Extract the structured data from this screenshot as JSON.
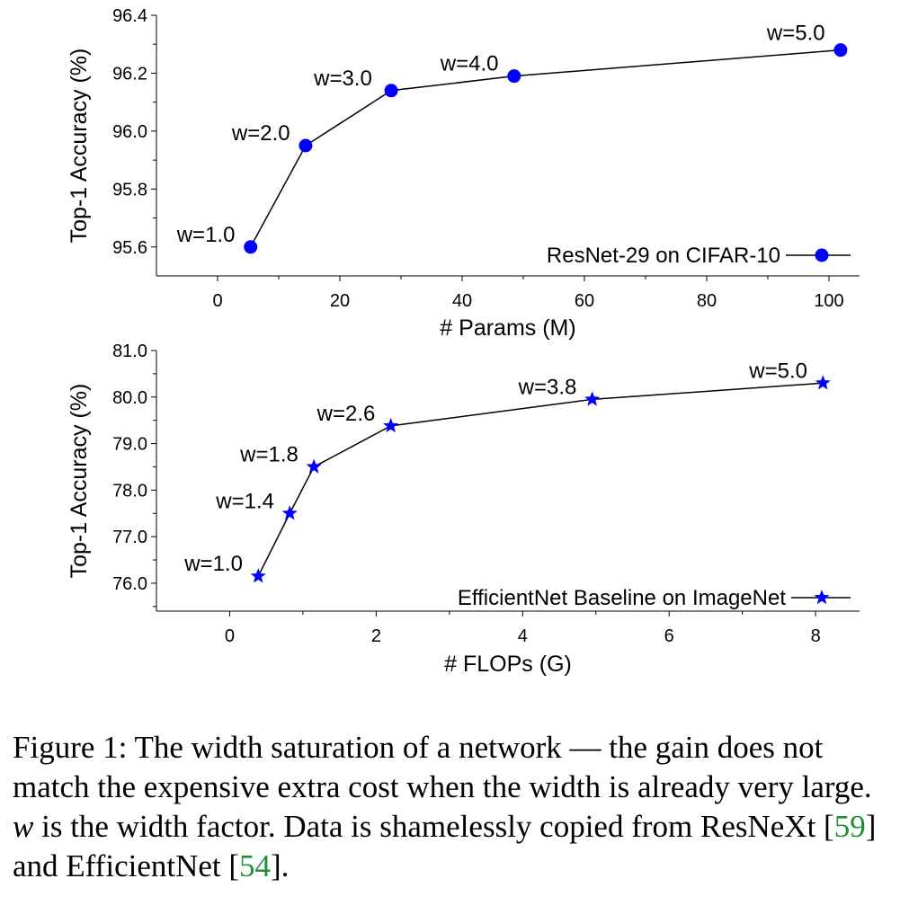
{
  "chart_data": [
    {
      "type": "line",
      "xlabel": "# Params (M)",
      "ylabel": "Top-1 Accuracy (%)",
      "xlim": [
        -10,
        105
      ],
      "ylim": [
        95.5,
        96.4
      ],
      "xticks": [
        0,
        20,
        40,
        60,
        80,
        100
      ],
      "yticks": [
        95.6,
        95.8,
        96.0,
        96.2,
        96.4
      ],
      "ytick_labels": [
        "95.6",
        "95.8",
        "96.0",
        "96.2",
        "96.4"
      ],
      "grid": false,
      "legend_position": "bottom-right",
      "marker": "circle",
      "color": "#0000ff",
      "series": [
        {
          "name": "ResNet-29 on CIFAR-10",
          "x": [
            5.4,
            14.4,
            28.4,
            48.5,
            101.9
          ],
          "y": [
            95.6,
            95.95,
            96.14,
            96.19,
            96.28
          ],
          "labels": [
            "w=1.0",
            "w=2.0",
            "w=3.0",
            "w=4.0",
            "w=5.0"
          ]
        }
      ]
    },
    {
      "type": "line",
      "xlabel": "# FLOPs (G)",
      "ylabel": "Top-1 Accuracy (%)",
      "xlim": [
        -1,
        8.6
      ],
      "ylim": [
        75.4,
        81.0
      ],
      "xticks": [
        0,
        2,
        4,
        6,
        8
      ],
      "yticks": [
        76.0,
        77.0,
        78.0,
        79.0,
        80.0,
        81.0
      ],
      "ytick_labels": [
        "76.0",
        "77.0",
        "78.0",
        "79.0",
        "80.0",
        "81.0"
      ],
      "grid": false,
      "legend_position": "bottom-right",
      "marker": "star",
      "color": "#0000ff",
      "series": [
        {
          "name": "EfficientNet Baseline on ImageNet",
          "x": [
            0.39,
            0.82,
            1.15,
            2.2,
            4.95,
            8.1
          ],
          "y": [
            76.15,
            77.5,
            78.5,
            79.38,
            79.95,
            80.3
          ],
          "labels": [
            "w=1.0",
            "w=1.4",
            "w=1.8",
            "w=2.6",
            "w=3.8",
            "w=5.0"
          ]
        }
      ]
    }
  ],
  "caption": {
    "prefix": "Figure 1: The width saturation of a network — the gain does not match the expensive extra cost when the width is already very large. ",
    "math": "w",
    "middle": " is the width factor. Data is shamelessly copied from ResNeXt [",
    "ref1": "59",
    "between": "] and EfficientNet [",
    "ref2": "54",
    "suffix": "]."
  }
}
